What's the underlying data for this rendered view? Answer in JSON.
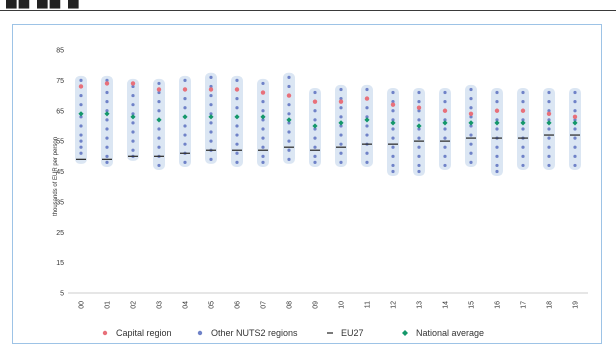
{
  "colors": {
    "capital": "#e8707a",
    "other": "#6f82c8",
    "eu27": "#333333",
    "national": "#14986a",
    "band": "#dbe6f3",
    "frame": "#9dc3e6"
  },
  "legend": [
    {
      "key": "capital",
      "label": "Capital region",
      "marker": "dot"
    },
    {
      "key": "other",
      "label": "Other NUTS2 regions",
      "marker": "dot"
    },
    {
      "key": "eu27",
      "label": "EU27",
      "marker": "dash"
    },
    {
      "key": "national",
      "label": "National average",
      "marker": "diamond"
    }
  ],
  "chart_data": {
    "type": "scatter",
    "title": "",
    "xlabel": "",
    "ylabel": "thousands of EUR per person",
    "ylim": [
      5,
      85
    ],
    "yticks": [
      5,
      15,
      25,
      35,
      45,
      55,
      65,
      75,
      85
    ],
    "categories": [
      "00",
      "01",
      "02",
      "03",
      "04",
      "05",
      "06",
      "07",
      "08",
      "09",
      "10",
      "11",
      "12",
      "13",
      "14",
      "15",
      "16",
      "17",
      "18",
      "19"
    ],
    "legend_position": "bottom",
    "grid": false,
    "series": [
      {
        "name": "Capital region",
        "values": [
          73,
          74,
          74,
          72,
          72,
          72,
          72,
          71,
          70,
          68,
          68,
          69,
          67,
          66,
          65,
          64,
          65,
          65,
          64,
          63
        ]
      },
      {
        "name": "EU27",
        "values": [
          49,
          49,
          50,
          50,
          51,
          52,
          52,
          52,
          53,
          52,
          53,
          54,
          54,
          55,
          55,
          56,
          56,
          56,
          57,
          57
        ]
      },
      {
        "name": "National average",
        "values": [
          64,
          64,
          63,
          62,
          63,
          63,
          63,
          63,
          62,
          60,
          61,
          62,
          61,
          60,
          61,
          61,
          61,
          61,
          61,
          61
        ]
      },
      {
        "name": "Other NUTS2 regions",
        "values": [
          [
            75,
            70,
            67,
            63,
            60,
            57,
            55,
            53,
            51
          ],
          [
            75,
            71,
            68,
            65,
            62,
            59,
            56,
            53,
            50,
            48
          ],
          [
            73,
            70,
            67,
            64,
            61,
            58,
            55,
            52,
            50
          ],
          [
            74,
            71,
            68,
            65,
            62,
            59,
            56,
            53,
            50,
            47
          ],
          [
            75,
            72,
            69,
            66,
            63,
            60,
            57,
            54,
            51,
            48
          ],
          [
            76,
            73,
            70,
            67,
            64,
            61,
            58,
            55,
            52,
            49
          ],
          [
            75,
            72,
            69,
            66,
            63,
            60,
            57,
            54,
            51,
            48
          ],
          [
            74,
            71,
            68,
            65,
            62,
            59,
            56,
            53,
            50,
            48
          ],
          [
            76,
            73,
            70,
            67,
            64,
            61,
            58,
            55,
            52,
            49
          ],
          [
            71,
            68,
            65,
            62,
            59,
            56,
            53,
            50,
            48
          ],
          [
            72,
            69,
            66,
            63,
            60,
            57,
            54,
            51,
            48
          ],
          [
            72,
            69,
            66,
            63,
            60,
            57,
            54,
            51,
            48
          ],
          [
            71,
            68,
            65,
            62,
            59,
            56,
            53,
            50,
            47,
            45
          ],
          [
            71,
            68,
            65,
            62,
            59,
            56,
            53,
            50,
            47,
            45
          ],
          [
            71,
            68,
            65,
            62,
            59,
            56,
            53,
            50,
            47
          ],
          [
            72,
            69,
            66,
            63,
            60,
            57,
            54,
            51,
            48
          ],
          [
            71,
            68,
            65,
            62,
            59,
            56,
            53,
            50,
            47,
            45
          ],
          [
            71,
            68,
            65,
            62,
            59,
            56,
            53,
            50,
            47
          ],
          [
            71,
            68,
            65,
            62,
            59,
            56,
            53,
            50,
            47
          ],
          [
            71,
            68,
            65,
            62,
            59,
            56,
            53,
            50,
            47
          ]
        ]
      }
    ]
  }
}
